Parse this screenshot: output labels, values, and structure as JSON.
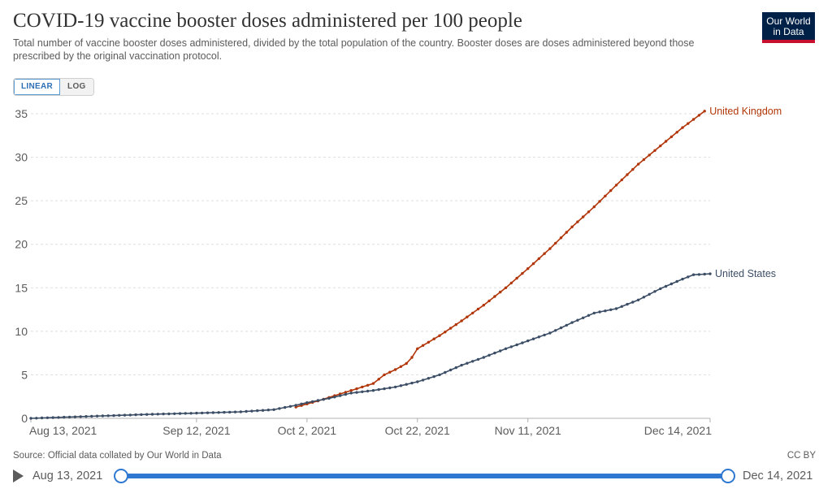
{
  "header": {
    "title": "COVID-19 vaccine booster doses administered per 100 people",
    "subtitle": "Total number of vaccine booster doses administered, divided by the total population of the country. Booster doses are doses administered beyond those prescribed by the original vaccination protocol.",
    "logo_line1": "Our World",
    "logo_line2": "in Data"
  },
  "controls": {
    "linear_label": "LINEAR",
    "log_label": "LOG",
    "active_scale": "linear"
  },
  "footer": {
    "source": "Source: Official data collated by Our World in Data",
    "license": "CC BY"
  },
  "timeline": {
    "start_label": "Aug 13, 2021",
    "end_label": "Dec 14, 2021"
  },
  "colors": {
    "uk": "#b13507",
    "us": "#3c4e66",
    "grid": "#dddddd",
    "axis_text": "#5b5b5b",
    "timeline_accent": "#2e78d2",
    "logo_bg": "#002147",
    "logo_accent": "#c8102e"
  },
  "chart_data": {
    "type": "line",
    "title": "COVID-19 vaccine booster doses administered per 100 people",
    "xlabel": "",
    "ylabel": "",
    "x_range": [
      "2021-08-13",
      "2021-12-14"
    ],
    "ylim": [
      0,
      35
    ],
    "yticks": [
      0,
      5,
      10,
      15,
      20,
      25,
      30,
      35
    ],
    "ytick_labels": [
      "0",
      "5",
      "10",
      "15",
      "20",
      "25",
      "30",
      "35"
    ],
    "xticks": [
      "2021-08-13",
      "2021-09-12",
      "2021-10-02",
      "2021-10-22",
      "2021-11-11",
      "2021-12-14"
    ],
    "xtick_labels": [
      "Aug 13, 2021",
      "Sep 12, 2021",
      "Oct 2, 2021",
      "Oct 22, 2021",
      "Nov 11, 2021",
      "Dec 14, 2021"
    ],
    "grid": "horizontal",
    "legend": "inline-right",
    "series": [
      {
        "name": "United Kingdom",
        "color": "#b13507",
        "points": [
          [
            "2021-09-30",
            1.3
          ],
          [
            "2021-10-04",
            2.0
          ],
          [
            "2021-10-08",
            2.8
          ],
          [
            "2021-10-12",
            3.6
          ],
          [
            "2021-10-14",
            4.0
          ],
          [
            "2021-10-16",
            5.0
          ],
          [
            "2021-10-18",
            5.6
          ],
          [
            "2021-10-20",
            6.3
          ],
          [
            "2021-10-21",
            7.0
          ],
          [
            "2021-10-22",
            8.0
          ],
          [
            "2021-10-26",
            9.5
          ],
          [
            "2021-10-30",
            11.2
          ],
          [
            "2021-11-03",
            13.0
          ],
          [
            "2021-11-07",
            15.0
          ],
          [
            "2021-11-11",
            17.2
          ],
          [
            "2021-11-15",
            19.5
          ],
          [
            "2021-11-19",
            22.0
          ],
          [
            "2021-11-23",
            24.3
          ],
          [
            "2021-11-27",
            26.8
          ],
          [
            "2021-12-01",
            29.2
          ],
          [
            "2021-12-05",
            31.3
          ],
          [
            "2021-12-09",
            33.4
          ],
          [
            "2021-12-13",
            35.3
          ]
        ]
      },
      {
        "name": "United States",
        "color": "#3c4e66",
        "points": [
          [
            "2021-08-13",
            0.0
          ],
          [
            "2021-08-20",
            0.15
          ],
          [
            "2021-08-27",
            0.3
          ],
          [
            "2021-09-03",
            0.45
          ],
          [
            "2021-09-12",
            0.6
          ],
          [
            "2021-09-20",
            0.75
          ],
          [
            "2021-09-26",
            1.0
          ],
          [
            "2021-09-30",
            1.5
          ],
          [
            "2021-10-02",
            1.8
          ],
          [
            "2021-10-06",
            2.3
          ],
          [
            "2021-10-10",
            2.9
          ],
          [
            "2021-10-14",
            3.2
          ],
          [
            "2021-10-18",
            3.6
          ],
          [
            "2021-10-22",
            4.2
          ],
          [
            "2021-10-26",
            5.0
          ],
          [
            "2021-10-30",
            6.1
          ],
          [
            "2021-11-03",
            7.0
          ],
          [
            "2021-11-07",
            8.0
          ],
          [
            "2021-11-11",
            8.9
          ],
          [
            "2021-11-15",
            9.8
          ],
          [
            "2021-11-19",
            11.0
          ],
          [
            "2021-11-23",
            12.1
          ],
          [
            "2021-11-27",
            12.6
          ],
          [
            "2021-12-01",
            13.6
          ],
          [
            "2021-12-05",
            14.9
          ],
          [
            "2021-12-09",
            16.0
          ],
          [
            "2021-12-11",
            16.5
          ],
          [
            "2021-12-14",
            16.6
          ]
        ]
      }
    ]
  }
}
